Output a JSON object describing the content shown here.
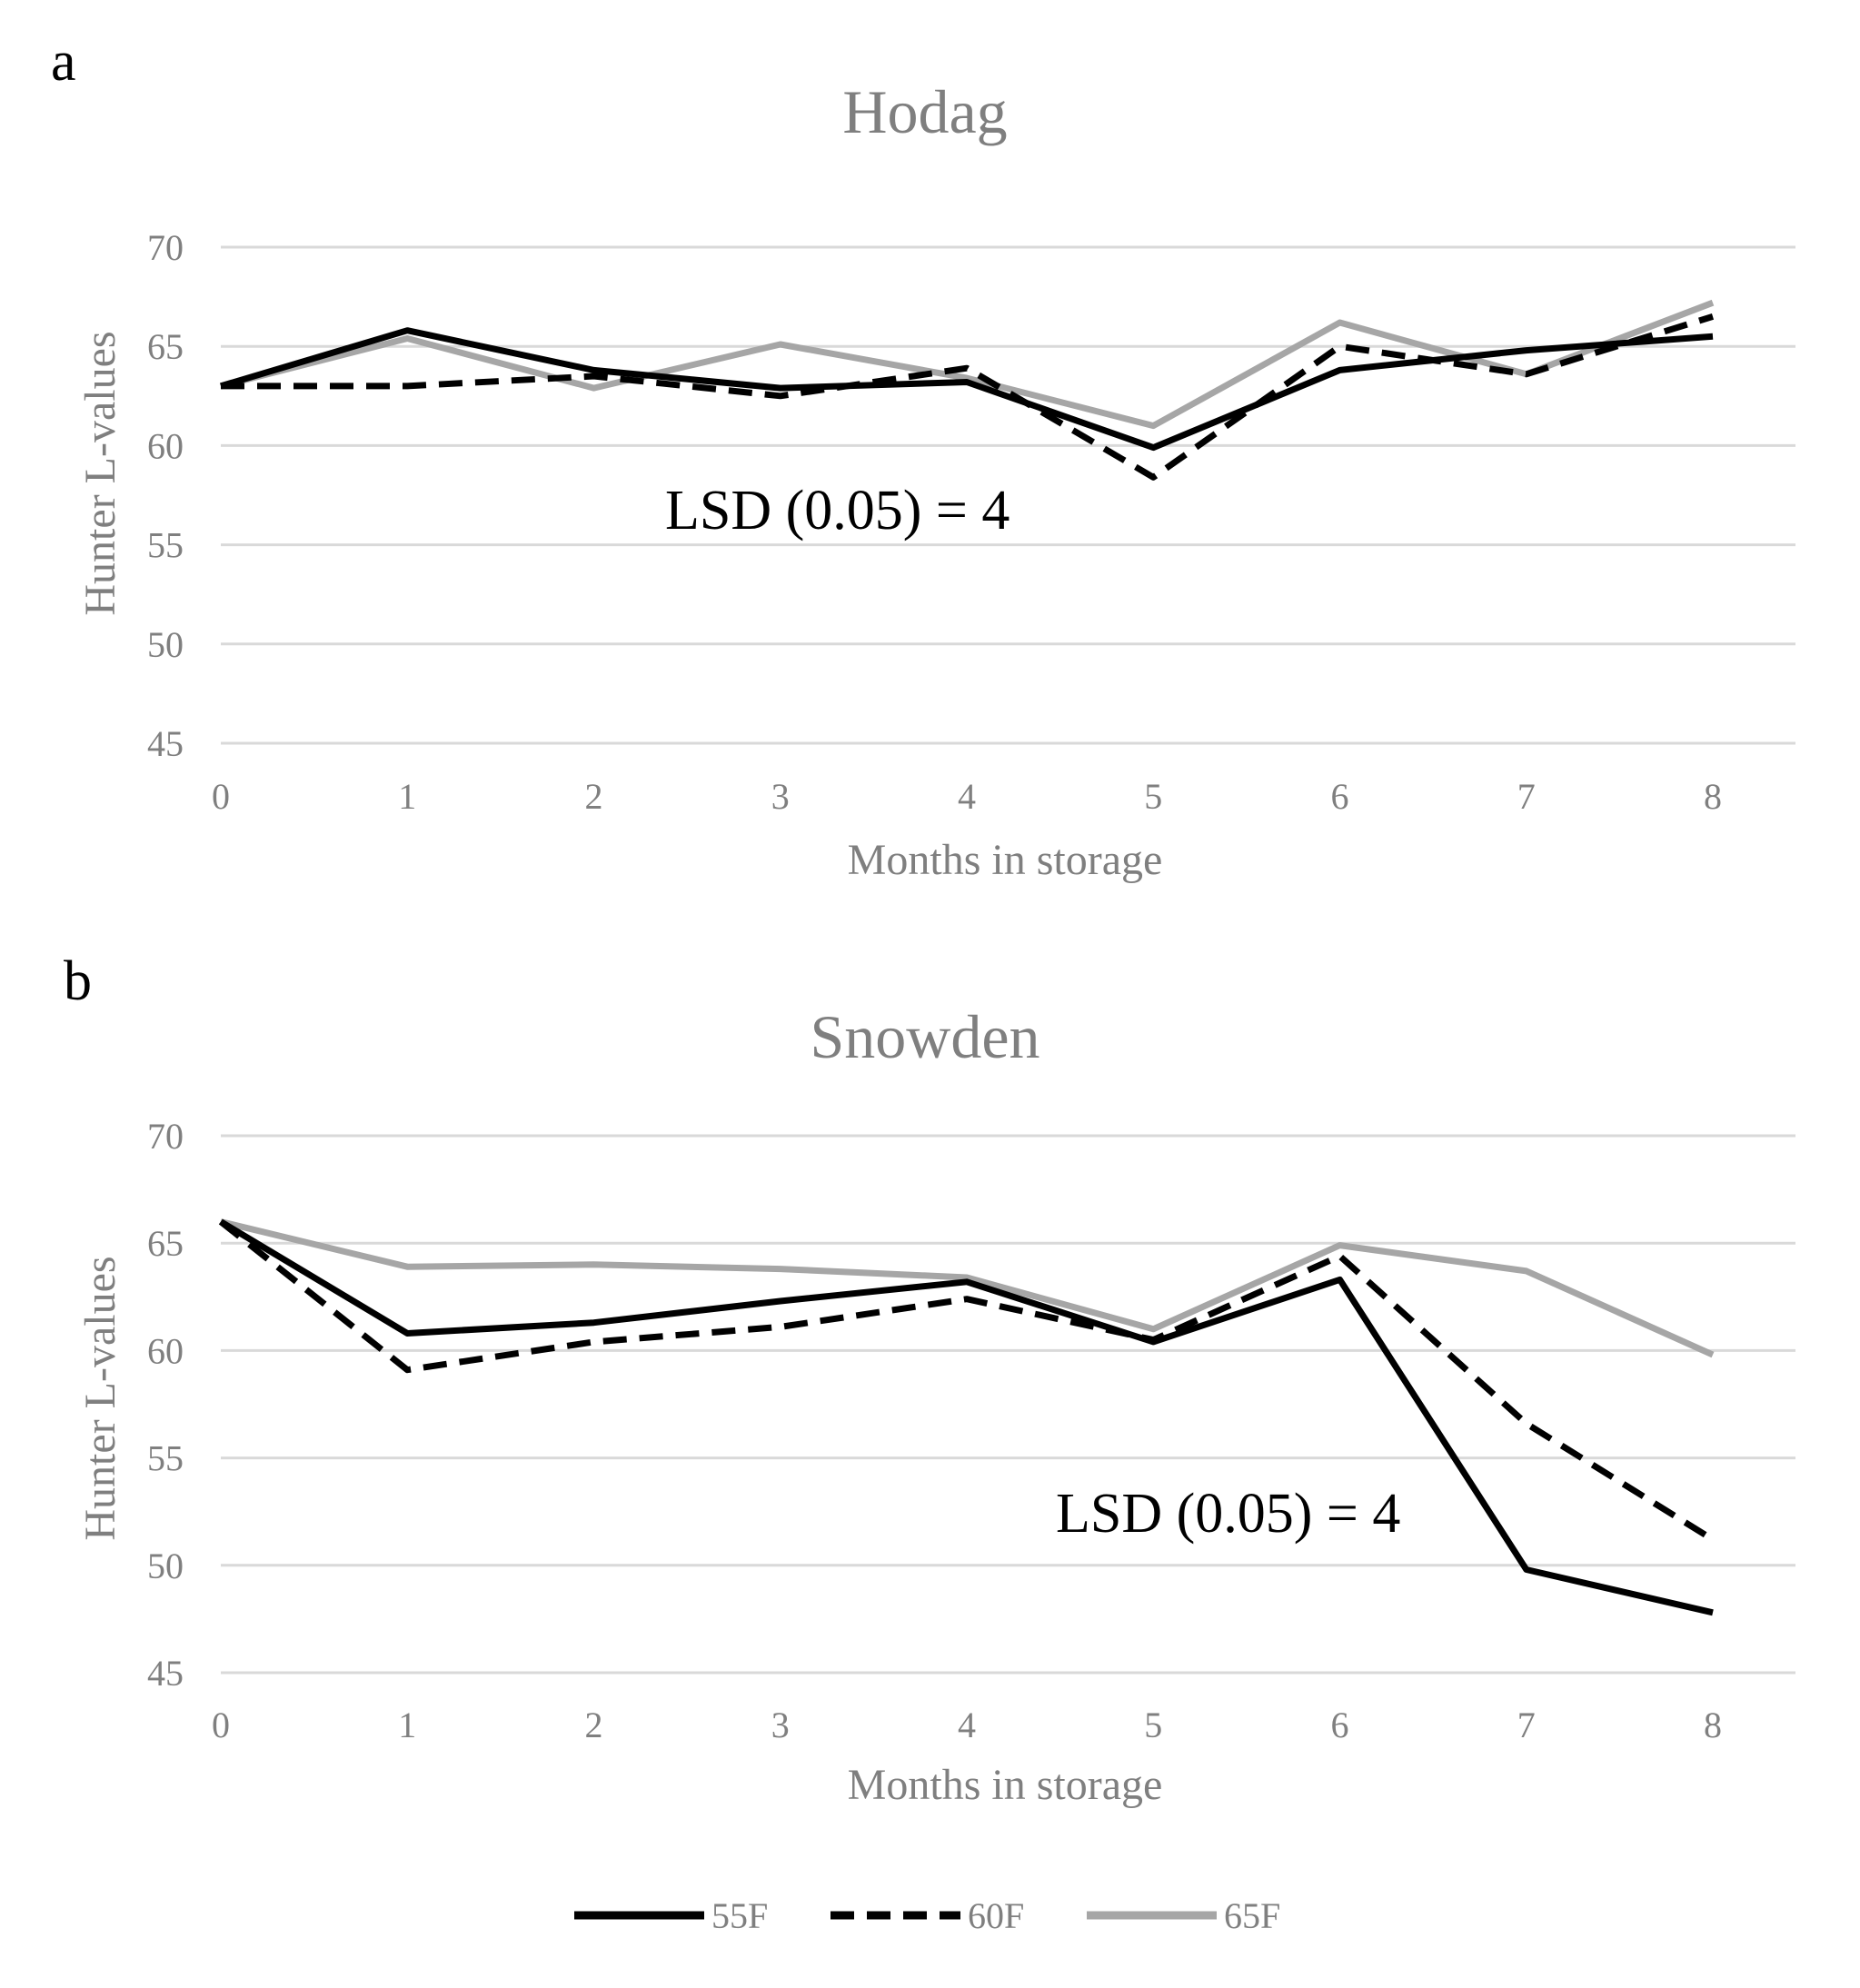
{
  "colors": {
    "grid": "#d9d9d9",
    "text_gray": "#7f7f7f",
    "series_55F": "#000000",
    "series_60F": "#000000",
    "series_65F": "#a6a6a6"
  },
  "legend": {
    "items": [
      {
        "name": "55F",
        "style": "solid",
        "color": "#000000"
      },
      {
        "name": "60F",
        "style": "dashed",
        "color": "#000000"
      },
      {
        "name": "65F",
        "style": "solid",
        "color": "#a6a6a6"
      }
    ]
  },
  "chart_data": [
    {
      "panel": "a",
      "type": "line",
      "title": "Hodag",
      "xlabel": "Months in storage",
      "ylabel": "Hunter L-values",
      "x": [
        0,
        1,
        2,
        3,
        4,
        5,
        6,
        7,
        8
      ],
      "x_tick_labels": [
        "0",
        "1",
        "2",
        "3",
        "4",
        "5",
        "6",
        "7",
        "8"
      ],
      "y_tick_labels": [
        "70",
        "65",
        "60",
        "55",
        "50",
        "45"
      ],
      "ylim": [
        45,
        70
      ],
      "grid": true,
      "annotation": "LSD (0.05) = 4",
      "series": [
        {
          "name": "55F",
          "values": [
            63.0,
            65.8,
            63.8,
            62.9,
            63.2,
            59.9,
            63.8,
            64.8,
            65.5
          ]
        },
        {
          "name": "60F",
          "values": [
            63.0,
            63.0,
            63.5,
            62.5,
            63.9,
            58.4,
            65.0,
            63.6,
            66.5
          ]
        },
        {
          "name": "65F",
          "values": [
            63.0,
            65.4,
            62.9,
            65.1,
            63.4,
            61.0,
            66.2,
            63.6,
            67.2
          ]
        }
      ]
    },
    {
      "panel": "b",
      "type": "line",
      "title": "Snowden",
      "xlabel": "Months in storage",
      "ylabel": "Hunter L-values",
      "x": [
        0,
        1,
        2,
        3,
        4,
        5,
        6,
        7,
        8
      ],
      "x_tick_labels": [
        "0",
        "1",
        "2",
        "3",
        "4",
        "5",
        "6",
        "7",
        "8"
      ],
      "y_tick_labels": [
        "70",
        "65",
        "60",
        "55",
        "50",
        "45"
      ],
      "ylim": [
        45,
        70
      ],
      "grid": true,
      "annotation": "LSD (0.05) = 4",
      "series": [
        {
          "name": "55F",
          "values": [
            66.0,
            60.8,
            61.3,
            62.3,
            63.2,
            60.4,
            63.3,
            49.8,
            47.8
          ]
        },
        {
          "name": "60F",
          "values": [
            66.0,
            59.1,
            60.4,
            61.1,
            62.4,
            60.5,
            64.4,
            56.6,
            51.2
          ]
        },
        {
          "name": "65F",
          "values": [
            66.0,
            63.9,
            64.0,
            63.8,
            63.4,
            61.0,
            64.9,
            63.7,
            59.8
          ]
        }
      ]
    }
  ]
}
